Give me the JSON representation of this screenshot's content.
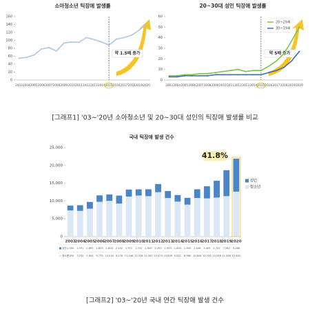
{
  "captions": [
    "[그래프1] '03~'20년 소아청소년 및 20~30대 성인의 틱장애 발생률 비교",
    "[그래프2] '03~'20년 국내 연간 틱장애 발생 건수"
  ],
  "chart_data": [
    {
      "type": "line",
      "title": "소아청소년 틱장애 발생률",
      "annotation": "약 1.5배 증가",
      "categories": [
        "2003",
        "2004",
        "2005",
        "2006",
        "2007",
        "2008",
        "2009",
        "2010",
        "2011",
        "2012",
        "2013",
        "2014",
        "2015",
        "2016",
        "2017",
        "2018",
        "2019",
        "2020"
      ],
      "values": [
        55,
        57,
        63,
        78,
        82,
        73,
        93,
        96,
        95,
        107,
        102,
        96,
        88,
        103,
        107,
        113,
        125,
        141
      ],
      "color": "#a9c9e6",
      "ylim": [
        0,
        160
      ],
      "yticks": [
        0,
        20,
        40,
        60,
        80,
        100,
        120,
        140,
        160
      ],
      "grid": false
    },
    {
      "type": "line",
      "title": "20~30대 성인 틱장애 발생률",
      "annotation": "약 5배 증가",
      "categories": [
        "2003",
        "2004",
        "2005",
        "2006",
        "2007",
        "2008",
        "2009",
        "2010",
        "2011",
        "2012",
        "2013",
        "2014",
        "2015",
        "2016",
        "2017",
        "2018",
        "2019",
        "2020"
      ],
      "series": [
        {
          "name": "20~29세",
          "color": "#7cc24a",
          "values": [
            4,
            4,
            5,
            5,
            6,
            6,
            7,
            8,
            9,
            10,
            8,
            9,
            9,
            13,
            18,
            25,
            37,
            50
          ]
        },
        {
          "name": "30~39세",
          "color": "#3b6fb6",
          "values": [
            3,
            3,
            4,
            4,
            4,
            4,
            5,
            5,
            5,
            5,
            5,
            5,
            5,
            7,
            9,
            12,
            18,
            27
          ]
        }
      ],
      "ylim": [
        0,
        60
      ],
      "yticks": [
        0,
        10,
        20,
        30,
        40,
        50,
        60
      ],
      "grid": false,
      "legend": "top-left"
    },
    {
      "type": "stacked-bar",
      "title": "국내 틱장애 발생 건수",
      "annotation": "41.8%",
      "categories": [
        "2003",
        "2004",
        "2005",
        "2006",
        "2007",
        "2008",
        "2009",
        "2010",
        "2011",
        "2012",
        "2013",
        "2014",
        "2015",
        "2016",
        "2017",
        "2018",
        "2019",
        "2020"
      ],
      "series": [
        {
          "name": "청소년",
          "color": "#dbe7f5",
          "values": [
            7350,
            7232,
            7842,
            9773,
            10044,
            9276,
            11246,
            11536,
            11352,
            12479,
            10849,
            9821,
            8980,
            10844,
            10728,
            10958,
            11364,
            12631
          ],
          "value_labels": [
            "7,350",
            "7,232",
            "7,842",
            "9,773",
            "10,044",
            "9,276",
            "11,246",
            "11,536",
            "11,352",
            "12,479",
            "10,849",
            "9,821",
            "8,980",
            "10,844",
            "10,728",
            "10,958",
            "11,364",
            "12,631"
          ]
        },
        {
          "name": "성인",
          "color": "#4a86c5",
          "values": [
            1350,
            1591,
            1897,
            1813,
            1804,
            2242,
            1971,
            1741,
            1945,
            2291,
            1953,
            1854,
            1905,
            2446,
            3409,
            4722,
            7282,
            9268
          ],
          "value_labels": [
            "1,350",
            "1,591",
            "1,897",
            "1,813",
            "1,804",
            "2,242",
            "1,971",
            "1,741",
            "1,945",
            "2,291",
            "1,953",
            "1,854",
            "1,905",
            "2,446",
            "3,409",
            "4,722",
            "7,282",
            "9,268"
          ]
        }
      ],
      "ylim": [
        0,
        25000
      ],
      "yticks": [
        0,
        {
          "value": 5000,
          "label": "5,000"
        },
        {
          "value": 10000,
          "label": "10,000"
        },
        {
          "value": 15000,
          "label": "15,000"
        },
        {
          "value": 20000,
          "label": "20,000"
        },
        {
          "value": 25000,
          "label": "25,000"
        }
      ],
      "grid": false,
      "legend": "right"
    }
  ]
}
